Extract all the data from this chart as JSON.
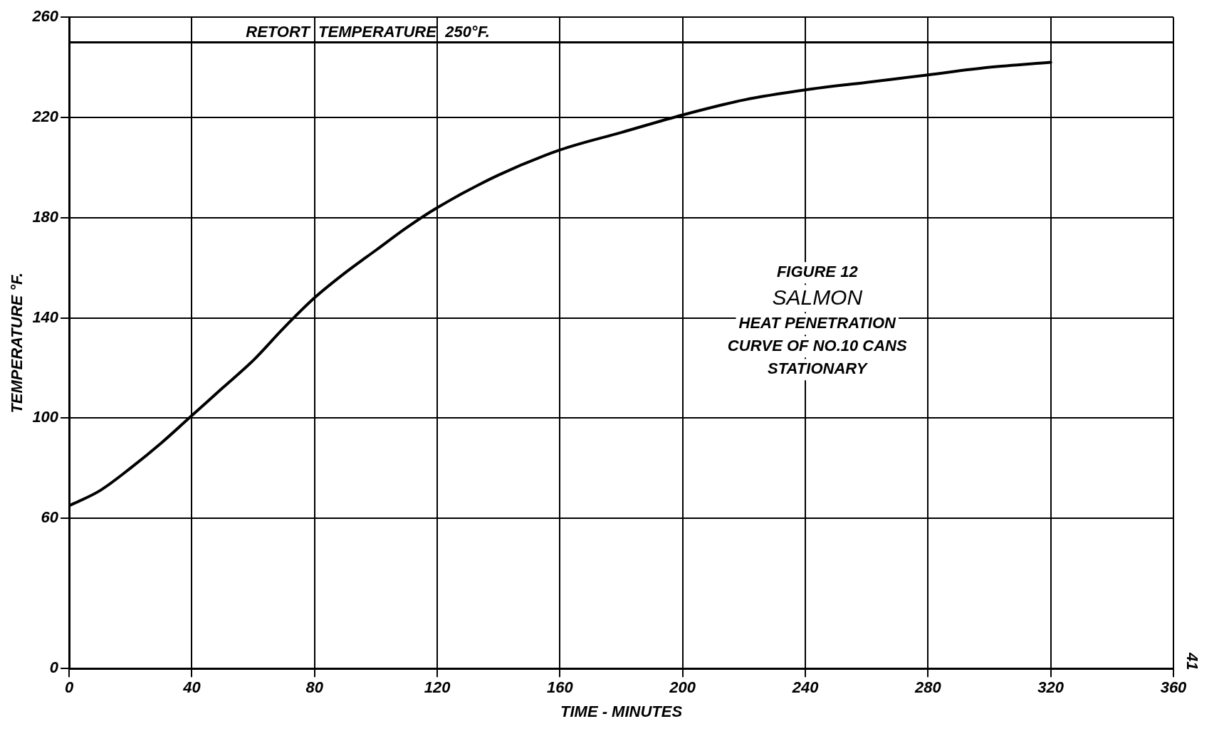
{
  "chart_data": {
    "type": "line",
    "xlabel": "TIME - MINUTES",
    "ylabel": "TEMPERATURE °F.",
    "x": [
      0,
      10,
      20,
      30,
      40,
      50,
      60,
      70,
      80,
      90,
      100,
      110,
      120,
      140,
      160,
      180,
      200,
      220,
      240,
      260,
      280,
      300,
      320
    ],
    "series": [
      {
        "color": "#000000",
        "values": [
          65,
          71,
          80,
          90,
          101,
          112,
          123,
          136,
          148,
          158,
          167,
          176,
          184,
          197,
          207,
          214,
          221,
          227,
          231,
          234,
          237,
          240,
          242
        ]
      }
    ],
    "xlim": [
      0,
      360
    ],
    "xticks": [
      0,
      40,
      80,
      120,
      160,
      200,
      240,
      280,
      320,
      360
    ],
    "ylim": [
      0,
      260
    ],
    "yticks": [
      0,
      60,
      100,
      140,
      180,
      220,
      260
    ],
    "grid": true,
    "legend": false,
    "marker": "none",
    "line_style": "solid",
    "ref_lines": [
      {
        "axis": "y",
        "value": 250,
        "label": "RETORT  TEMPERATURE  250°F."
      }
    ],
    "annotations": [
      "FIGURE 12",
      "SALMON",
      "HEAT PENETRATION",
      "CURVE OF NO.10 CANS",
      "STATIONARY",
      "41"
    ]
  }
}
